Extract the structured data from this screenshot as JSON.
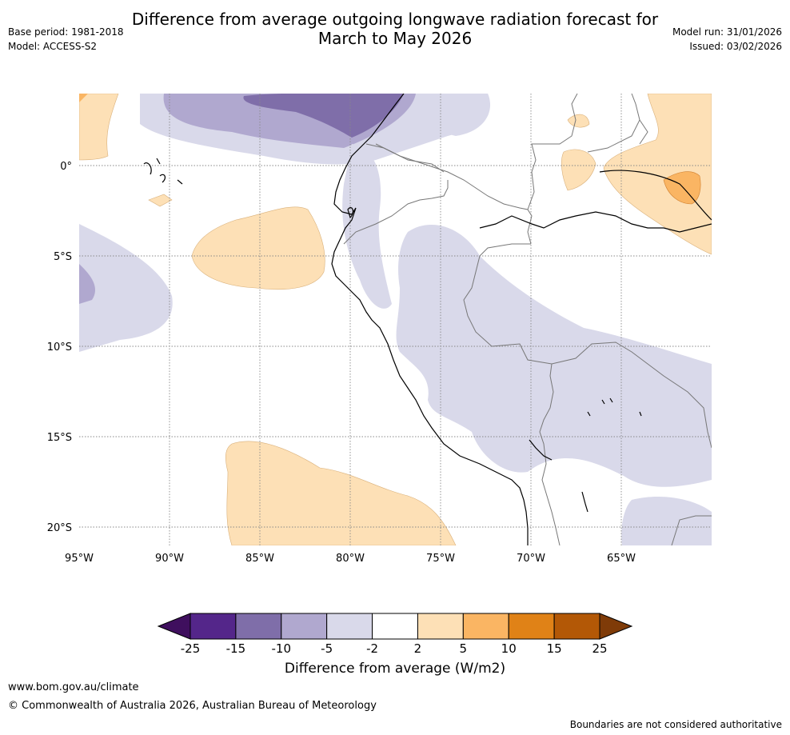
{
  "header": {
    "title_line1": "Difference from average outgoing longwave radiation forecast for",
    "title_line2": "March to May 2026",
    "base_period": "Base period: 1981-2018",
    "model": "Model: ACCESS-S2",
    "model_run": "Model run: 31/01/2026",
    "issued": "Issued: 03/02/2026"
  },
  "map": {
    "lon_labels": [
      "95°W",
      "90°W",
      "85°W",
      "80°W",
      "75°W",
      "70°W",
      "65°W"
    ],
    "lat_labels": [
      "0°",
      "5°S",
      "10°S",
      "15°S",
      "20°S"
    ],
    "lon_extent": [
      -95,
      -60
    ],
    "lat_extent": [
      -21,
      4
    ]
  },
  "colorbar": {
    "title": "Difference from average (W/m2)",
    "ticks": [
      "-25",
      "-15",
      "-10",
      "-5",
      "-2",
      "2",
      "5",
      "10",
      "15",
      "25"
    ],
    "colors": [
      "#3f0f5e",
      "#54268a",
      "#7f6ea9",
      "#b0a8cf",
      "#d9d9ea",
      "#ffffff",
      "#fde0b6",
      "#fab563",
      "#e08217",
      "#b35806",
      "#7f3b08"
    ]
  },
  "footer": {
    "url": "www.bom.gov.au/climate",
    "copyright": "© Commonwealth of Australia 2026, Australian Bureau of Meteorology",
    "note": "Boundaries are not considered authoritative"
  }
}
